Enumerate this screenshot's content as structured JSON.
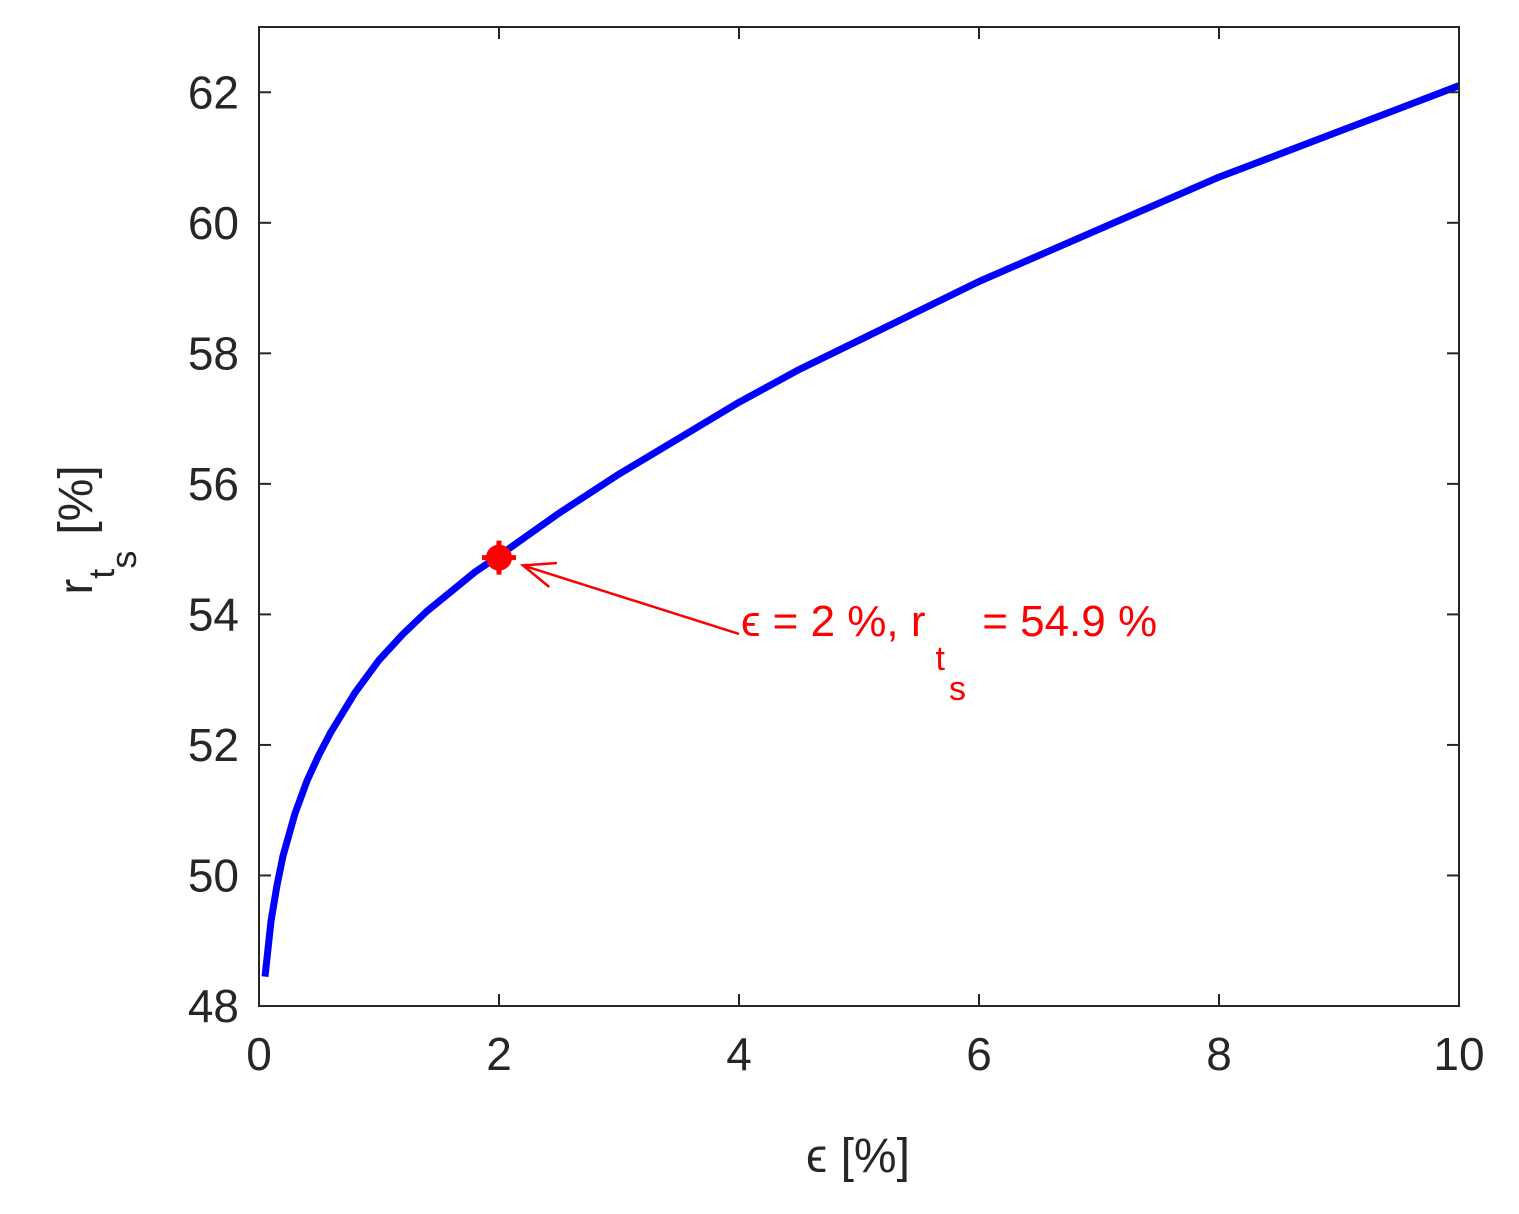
{
  "chart_data": {
    "type": "line",
    "x_label": {
      "symbol": "ϵ",
      "unit": "[%]"
    },
    "y_label": {
      "base": "r",
      "sub1": "t",
      "sub2": "s",
      "unit": "[%]"
    },
    "xlim": [
      0,
      10
    ],
    "ylim": [
      48,
      63
    ],
    "x_ticks": [
      0,
      2,
      4,
      6,
      8,
      10
    ],
    "y_ticks": [
      48,
      50,
      52,
      54,
      56,
      58,
      60,
      62
    ],
    "grid": false,
    "series": [
      {
        "color": "#0000ff",
        "x": [
          0.05,
          0.1,
          0.15,
          0.2,
          0.3,
          0.4,
          0.5,
          0.6,
          0.7,
          0.8,
          1.0,
          1.2,
          1.4,
          1.6,
          1.8,
          2.0,
          2.5,
          3.0,
          3.5,
          4.0,
          4.5,
          5.0,
          5.5,
          6.0,
          6.5,
          7.0,
          7.5,
          8.0,
          8.5,
          9.0,
          9.5,
          10.0
        ],
        "y": [
          48.45,
          49.3,
          49.85,
          50.3,
          50.95,
          51.45,
          51.85,
          52.2,
          52.5,
          52.8,
          53.3,
          53.7,
          54.05,
          54.35,
          54.65,
          54.9,
          55.55,
          56.15,
          56.7,
          57.25,
          57.75,
          58.2,
          58.65,
          59.1,
          59.5,
          59.9,
          60.3,
          60.7,
          61.05,
          61.4,
          61.75,
          62.1
        ]
      }
    ],
    "highlight": {
      "x": 2,
      "y": 54.87,
      "color": "#ff0000"
    },
    "annotation": {
      "text_before": "ϵ = 2 %, r",
      "sub1": "t",
      "sub2": "s",
      "text_after": " = 54.9 %",
      "color": "#ff0000",
      "arrow_from": {
        "x": 4.0,
        "y": 53.7
      },
      "arrow_to": {
        "x": 2.2,
        "y": 54.75
      }
    },
    "colors": {
      "axis": "#262626",
      "line": "#0000ff",
      "highlight": "#ff0000"
    }
  }
}
